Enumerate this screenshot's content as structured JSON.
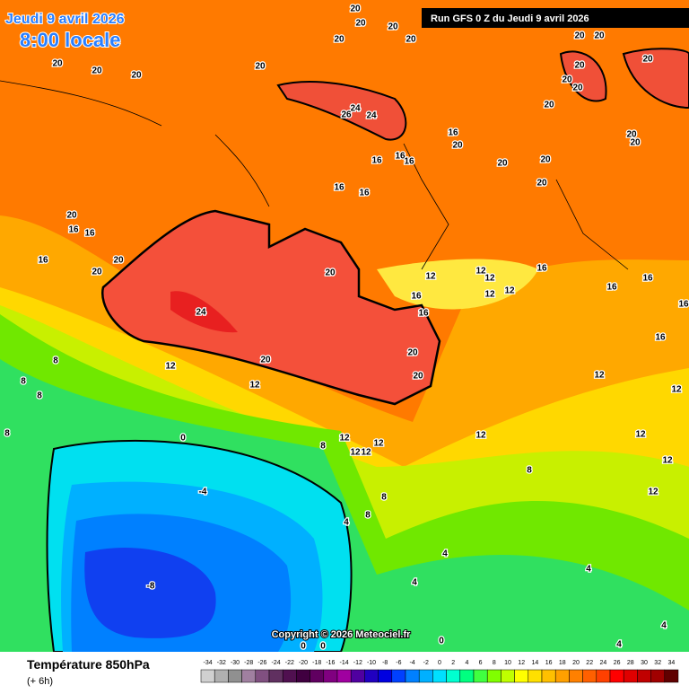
{
  "header": {
    "date": "Jeudi 9 avril 2026",
    "time": "8:00 locale",
    "run": "Run GFS 0 Z du Jeudi 9 avril 2026"
  },
  "copyright": "Copyright © 2026 Meteociel.fr",
  "footer": {
    "title": "Température 850hPa",
    "subtitle": "(+ 6h)"
  },
  "scale": {
    "ticks": [
      -34,
      -32,
      -30,
      -28,
      -26,
      -24,
      -22,
      -20,
      -18,
      -16,
      -14,
      -12,
      -10,
      -8,
      -6,
      -4,
      -2,
      0,
      2,
      4,
      6,
      8,
      10,
      12,
      14,
      16,
      18,
      20,
      22,
      24,
      26,
      28,
      30,
      32,
      34
    ],
    "colors": [
      "#d0d0d0",
      "#b0b0b0",
      "#909090",
      "#a080a0",
      "#805080",
      "#603060",
      "#501050",
      "#400040",
      "#600060",
      "#800080",
      "#a000a0",
      "#5000a0",
      "#2000c0",
      "#0000e0",
      "#0040ff",
      "#0080ff",
      "#00b0ff",
      "#00e0ff",
      "#00ffd0",
      "#00ff80",
      "#40ff40",
      "#80ff00",
      "#c0ff00",
      "#ffff00",
      "#ffe000",
      "#ffc000",
      "#ffa000",
      "#ff8000",
      "#ff6000",
      "#ff4000",
      "#ff0000",
      "#e00000",
      "#c00000",
      "#a00000",
      "#600000"
    ]
  },
  "contour_labels": [
    20,
    20,
    20,
    20,
    20,
    20,
    20,
    20,
    20,
    20,
    20,
    20,
    20,
    20,
    20,
    20,
    24,
    26,
    24,
    16,
    20,
    16,
    16,
    20,
    20,
    20,
    20,
    20,
    16,
    16,
    16,
    20,
    16,
    16,
    16,
    20,
    20,
    20,
    24,
    20,
    20,
    20,
    12,
    12,
    12,
    12,
    12,
    16,
    16,
    16,
    16,
    16,
    16,
    16,
    12,
    12,
    12,
    12,
    12,
    12,
    12,
    12,
    12,
    12,
    12,
    12,
    8,
    8,
    8,
    8,
    8,
    8,
    8,
    8,
    4,
    0,
    -4,
    4,
    4,
    4,
    4,
    4,
    -8,
    0,
    0,
    0
  ]
}
